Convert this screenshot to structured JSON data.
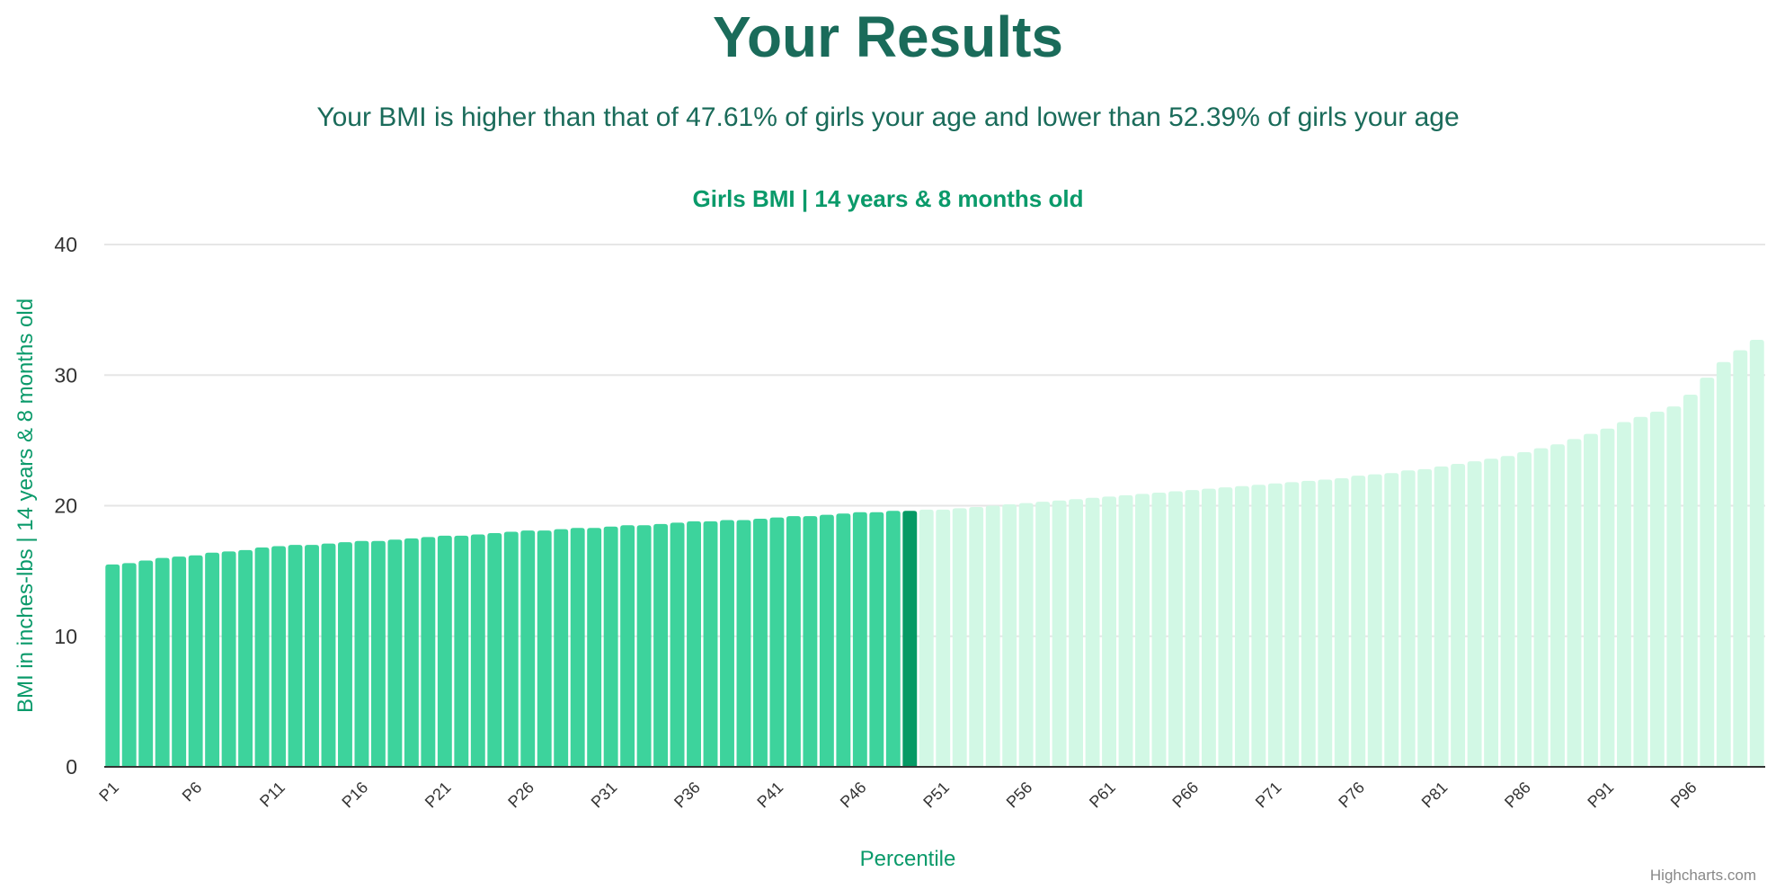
{
  "header": {
    "title": "Your Results",
    "subtitle": "Your BMI is higher than that of 47.61% of girls your age and lower than 52.39% of girls your age"
  },
  "credits": "Highcharts.com",
  "colors": {
    "bar_below": "#3dd39c",
    "bar_current": "#079a65",
    "bar_above": "#d2f8e5",
    "text_dark": "#1a6b5a",
    "text_accent": "#0a9a6a"
  },
  "chart_data": {
    "type": "bar",
    "title": "Girls BMI | 14 years & 8 months old",
    "xlabel": "Percentile",
    "ylabel": "BMI in inches-lbs | 14 years & 8 months old",
    "ylim": [
      0,
      40
    ],
    "yticks": [
      0,
      10,
      20,
      30,
      40
    ],
    "grid": true,
    "legend": "none",
    "highlight_index": 48,
    "categories": [
      "P1",
      "P2",
      "P3",
      "P4",
      "P5",
      "P6",
      "P7",
      "P8",
      "P9",
      "P10",
      "P11",
      "P12",
      "P13",
      "P14",
      "P15",
      "P16",
      "P17",
      "P18",
      "P19",
      "P20",
      "P21",
      "P22",
      "P23",
      "P24",
      "P25",
      "P26",
      "P27",
      "P28",
      "P29",
      "P30",
      "P31",
      "P32",
      "P33",
      "P34",
      "P35",
      "P36",
      "P37",
      "P38",
      "P39",
      "P40",
      "P41",
      "P42",
      "P43",
      "P44",
      "P45",
      "P46",
      "P47",
      "P48",
      "P49",
      "P50",
      "P51",
      "P52",
      "P53",
      "P54",
      "P55",
      "P56",
      "P57",
      "P58",
      "P59",
      "P60",
      "P61",
      "P62",
      "P63",
      "P64",
      "P65",
      "P66",
      "P67",
      "P68",
      "P69",
      "P70",
      "P71",
      "P72",
      "P73",
      "P74",
      "P75",
      "P76",
      "P77",
      "P78",
      "P79",
      "P80",
      "P81",
      "P82",
      "P83",
      "P84",
      "P85",
      "P86",
      "P87",
      "P88",
      "P89",
      "P90",
      "P91",
      "P92",
      "P93",
      "P94",
      "P95",
      "P96",
      "P97",
      "P98",
      "P99",
      "P100"
    ],
    "tick_labels": [
      "P1",
      "P6",
      "P11",
      "P16",
      "P21",
      "P26",
      "P31",
      "P36",
      "P41",
      "P46",
      "P51",
      "P56",
      "P61",
      "P66",
      "P71",
      "P76",
      "P81",
      "P86",
      "P91",
      "P96"
    ],
    "values": [
      15.5,
      15.6,
      15.8,
      16.0,
      16.1,
      16.2,
      16.4,
      16.5,
      16.6,
      16.8,
      16.9,
      17.0,
      17.0,
      17.1,
      17.2,
      17.3,
      17.3,
      17.4,
      17.5,
      17.6,
      17.7,
      17.7,
      17.8,
      17.9,
      18.0,
      18.1,
      18.1,
      18.2,
      18.3,
      18.3,
      18.4,
      18.5,
      18.5,
      18.6,
      18.7,
      18.8,
      18.8,
      18.9,
      18.9,
      19.0,
      19.1,
      19.2,
      19.2,
      19.3,
      19.4,
      19.5,
      19.5,
      19.6,
      19.6,
      19.7,
      19.7,
      19.8,
      19.9,
      20.0,
      20.1,
      20.2,
      20.3,
      20.4,
      20.5,
      20.6,
      20.7,
      20.8,
      20.9,
      21.0,
      21.1,
      21.2,
      21.3,
      21.4,
      21.5,
      21.6,
      21.7,
      21.8,
      21.9,
      22.0,
      22.1,
      22.3,
      22.4,
      22.5,
      22.7,
      22.8,
      23.0,
      23.2,
      23.4,
      23.6,
      23.8,
      24.1,
      24.4,
      24.7,
      25.1,
      25.5,
      25.9,
      26.4,
      26.8,
      27.2,
      27.6,
      28.5,
      29.8,
      31.0,
      31.9,
      32.7
    ]
  }
}
